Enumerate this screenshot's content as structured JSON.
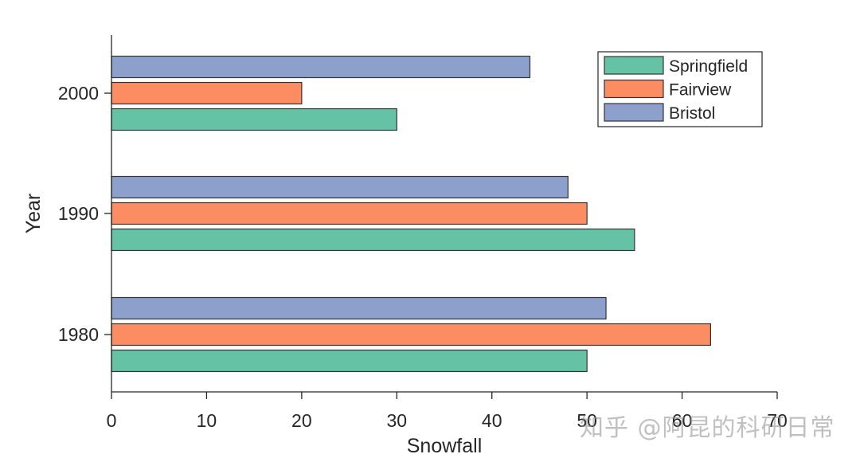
{
  "chart_data": {
    "type": "bar",
    "orientation": "horizontal",
    "title": "",
    "xlabel": "Snowfall",
    "ylabel": "Year",
    "categories": [
      "1980",
      "1990",
      "2000"
    ],
    "series": [
      {
        "name": "Springfield",
        "color": "#66c2a5",
        "values": [
          50,
          55,
          30
        ]
      },
      {
        "name": "Fairview",
        "color": "#fc8d62",
        "values": [
          63,
          50,
          20
        ]
      },
      {
        "name": "Bristol",
        "color": "#8da0cb",
        "values": [
          52,
          48,
          44
        ]
      }
    ],
    "xlim": [
      0,
      70
    ],
    "xticks": [
      0,
      10,
      20,
      30,
      40,
      50,
      60,
      70
    ],
    "grid": false,
    "legend_position": "upper right"
  },
  "watermark": "知乎 @阿昆的科研日常"
}
